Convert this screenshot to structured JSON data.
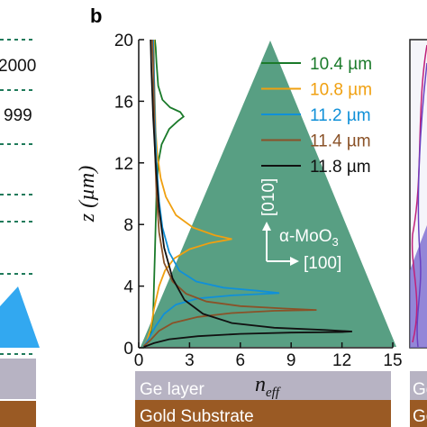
{
  "panel_letter": "b",
  "left_fragments": [
    "2000",
    "999"
  ],
  "inset": {
    "dir_vertical": "[010]",
    "dir_horizontal": "[100]",
    "material": "α-MoO",
    "material_sub": "3"
  },
  "layers": {
    "ge_label": "Ge layer",
    "gold_label": "Gold Substrate",
    "right_ge_fragment": "Ge",
    "right_gold_fragment": "Go",
    "ge_color": "#b7b3c3",
    "gold_color": "#9a5a24"
  },
  "colors": {
    "triangle": "#4f9a7c",
    "left_triangle": "#32a8f0"
  },
  "chart_data": {
    "type": "line",
    "xlabel": "n",
    "xlabel_sub": "eff",
    "ylabel": "z (µm)",
    "xlim": [
      0,
      15
    ],
    "ylim": [
      0,
      20
    ],
    "xticks": [
      0,
      3,
      6,
      9,
      12,
      15
    ],
    "yticks": [
      0,
      4,
      8,
      12,
      16,
      20
    ],
    "grid": false,
    "legend_position": "top-right",
    "series": [
      {
        "name": "10.4 µm",
        "color": "#1a7a2a",
        "points": [
          [
            0.3,
            0.1
          ],
          [
            0.5,
            0.4
          ],
          [
            0.7,
            1.0
          ],
          [
            0.85,
            2.0
          ],
          [
            0.9,
            4
          ],
          [
            0.95,
            6
          ],
          [
            1.0,
            8
          ],
          [
            1.05,
            10
          ],
          [
            1.15,
            12
          ],
          [
            1.35,
            13.2
          ],
          [
            1.8,
            14.2
          ],
          [
            2.3,
            14.7
          ],
          [
            2.65,
            15.0
          ],
          [
            2.45,
            15.3
          ],
          [
            1.85,
            15.6
          ],
          [
            1.4,
            16.1
          ],
          [
            1.15,
            17.0
          ],
          [
            1.05,
            18.5
          ],
          [
            1.0,
            19.5
          ],
          [
            0.95,
            20.0
          ]
        ]
      },
      {
        "name": "10.8 µm",
        "color": "#f0a010",
        "points": [
          [
            0.3,
            0.1
          ],
          [
            0.5,
            0.5
          ],
          [
            0.7,
            1.2
          ],
          [
            0.9,
            2.5
          ],
          [
            1.2,
            4
          ],
          [
            1.55,
            5
          ],
          [
            2.1,
            5.8
          ],
          [
            3.0,
            6.4
          ],
          [
            4.2,
            6.8
          ],
          [
            5.5,
            7.05
          ],
          [
            4.5,
            7.3
          ],
          [
            3.2,
            7.8
          ],
          [
            2.2,
            8.6
          ],
          [
            1.6,
            9.8
          ],
          [
            1.3,
            11
          ],
          [
            1.1,
            12.5
          ],
          [
            1.0,
            14
          ],
          [
            0.95,
            16
          ],
          [
            0.9,
            18
          ],
          [
            0.9,
            20
          ]
        ]
      },
      {
        "name": "11.2 µm",
        "color": "#1090d8",
        "points": [
          [
            0.3,
            0.1
          ],
          [
            0.6,
            0.6
          ],
          [
            1.0,
            1.4
          ],
          [
            1.5,
            2.2
          ],
          [
            2.2,
            2.8
          ],
          [
            3.5,
            3.2
          ],
          [
            5.5,
            3.4
          ],
          [
            7.5,
            3.5
          ],
          [
            8.3,
            3.55
          ],
          [
            7.0,
            3.7
          ],
          [
            5.0,
            3.9
          ],
          [
            3.4,
            4.3
          ],
          [
            2.4,
            5.0
          ],
          [
            1.8,
            6.2
          ],
          [
            1.4,
            7.8
          ],
          [
            1.2,
            9.5
          ],
          [
            1.05,
            12
          ],
          [
            0.95,
            15
          ],
          [
            0.9,
            18
          ],
          [
            0.85,
            20
          ]
        ]
      },
      {
        "name": "11.4 µm",
        "color": "#8a5228",
        "points": [
          [
            0.3,
            0.1
          ],
          [
            0.7,
            0.5
          ],
          [
            1.2,
            1.1
          ],
          [
            2.0,
            1.6
          ],
          [
            3.5,
            2.0
          ],
          [
            5.5,
            2.25
          ],
          [
            8.0,
            2.4
          ],
          [
            10.5,
            2.45
          ],
          [
            8.5,
            2.55
          ],
          [
            6.0,
            2.7
          ],
          [
            4.0,
            3.0
          ],
          [
            2.8,
            3.5
          ],
          [
            2.0,
            4.3
          ],
          [
            1.5,
            5.5
          ],
          [
            1.2,
            7.5
          ],
          [
            1.05,
            10
          ],
          [
            0.95,
            13
          ],
          [
            0.9,
            16
          ],
          [
            0.85,
            18.5
          ],
          [
            0.8,
            20
          ]
        ]
      },
      {
        "name": "11.8 µm",
        "color": "#111111",
        "points": [
          [
            0.3,
            0.05
          ],
          [
            0.9,
            0.3
          ],
          [
            1.8,
            0.55
          ],
          [
            3.5,
            0.75
          ],
          [
            6.0,
            0.9
          ],
          [
            9.0,
            0.98
          ],
          [
            12.0,
            1.02
          ],
          [
            12.6,
            1.05
          ],
          [
            11.0,
            1.15
          ],
          [
            8.0,
            1.3
          ],
          [
            5.5,
            1.6
          ],
          [
            3.8,
            2.2
          ],
          [
            2.7,
            3.1
          ],
          [
            2.0,
            4.5
          ],
          [
            1.5,
            6.5
          ],
          [
            1.2,
            9.0
          ],
          [
            1.0,
            12.0
          ],
          [
            0.85,
            15
          ],
          [
            0.75,
            18
          ],
          [
            0.7,
            20
          ]
        ]
      }
    ]
  }
}
